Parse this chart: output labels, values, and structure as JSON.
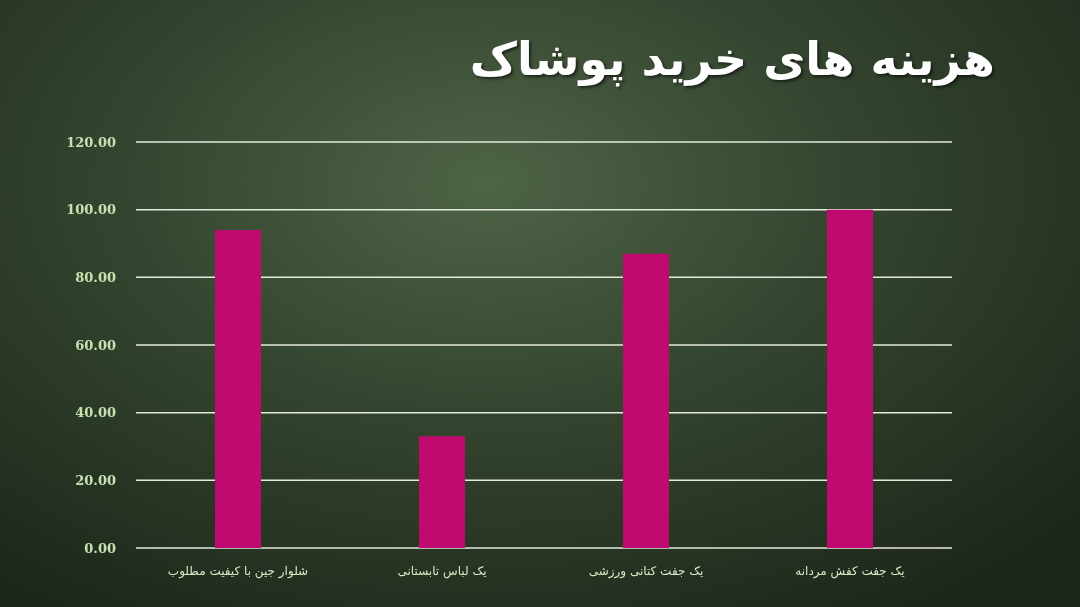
{
  "chart_data": {
    "type": "bar",
    "title": "هزینه های خرید پوشاک",
    "categories": [
      "شلوار جین با کیفیت مطلوب",
      "یک لباس تابستانی",
      "یک جفت کتانی ورزشی",
      "یک جفت کفش مردانه"
    ],
    "values": [
      94,
      33,
      87,
      100
    ],
    "color": "#bf0a70",
    "ylim": [
      0,
      120
    ],
    "yticks": [
      {
        "value": 0,
        "label": "0.00"
      },
      {
        "value": 20,
        "label": "20.00"
      },
      {
        "value": 40,
        "label": "40.00"
      },
      {
        "value": 60,
        "label": "60.00"
      },
      {
        "value": 80,
        "label": "80.00"
      },
      {
        "value": 100,
        "label": "100.00"
      },
      {
        "value": 120,
        "label": "120.00"
      }
    ],
    "grid": "y"
  }
}
